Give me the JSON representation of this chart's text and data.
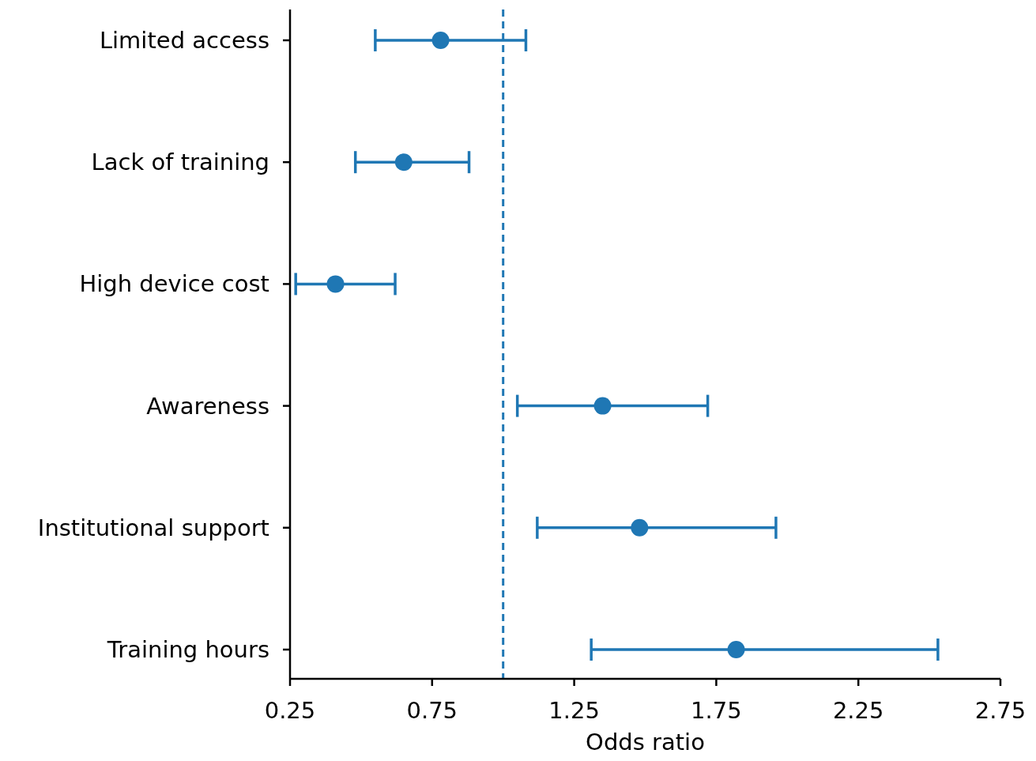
{
  "chart_data": {
    "type": "scatter",
    "orientation": "horizontal",
    "xlabel": "Odds ratio",
    "categories": [
      "Limited access",
      "Lack of training",
      "High device cost",
      "Awareness",
      "Institutional support",
      "Training hours"
    ],
    "values": [
      0.78,
      0.65,
      0.41,
      1.35,
      1.48,
      1.82
    ],
    "errors": [
      [
        0.55,
        1.08
      ],
      [
        0.48,
        0.88
      ],
      [
        0.27,
        0.62
      ],
      [
        1.05,
        1.72
      ],
      [
        1.12,
        1.96
      ],
      [
        1.31,
        2.53
      ]
    ],
    "color": "#1f77b4",
    "marker": "circle",
    "xlim": [
      0.25,
      2.75
    ],
    "xticks": [
      {
        "value": 0.25,
        "label": "0.25"
      },
      {
        "value": 0.75,
        "label": "0.75"
      },
      {
        "value": 1.25,
        "label": "1.25"
      },
      {
        "value": 1.75,
        "label": "1.75"
      },
      {
        "value": 2.25,
        "label": "2.25"
      },
      {
        "value": 2.75,
        "label": "2.75"
      }
    ],
    "ref_lines": [
      {
        "axis": "x",
        "value": 1,
        "color": "#1f77b4",
        "line_style": "dashed"
      }
    ]
  }
}
